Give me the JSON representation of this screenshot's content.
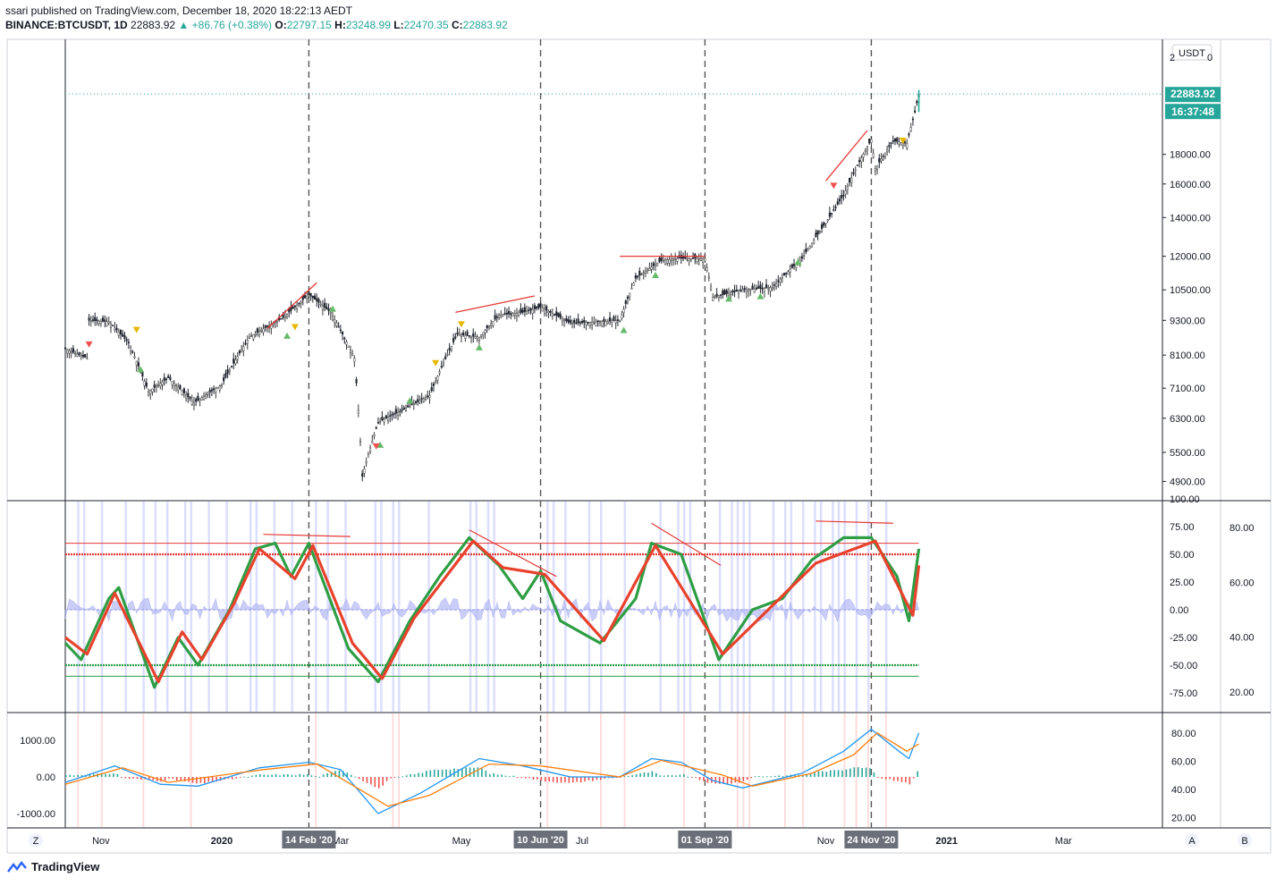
{
  "header": {
    "line1": "ssari published on TradingView.com, December 18, 2020 18:22:13 AEDT",
    "symbol": "BINANCE:BTCUSDT, 1D",
    "last": "22883.92",
    "change": "+86.76 (+0.38%)",
    "o_label": "O:",
    "o": "22797.15",
    "h_label": "H:",
    "h": "23248.99",
    "l_label": "L:",
    "l": "22470.35",
    "c_label": "C:",
    "c": "22883.92"
  },
  "price_axis": {
    "currency": "USDT",
    "ticks": [
      "18000.00",
      "16000.00",
      "14000.00",
      "12000.00",
      "10500.00",
      "9300.00",
      "8100.00",
      "7100.00",
      "6300.00",
      "5500.00",
      "4900.00"
    ],
    "top_tick_fragment": "2",
    "last_price_tag": "22883.92",
    "countdown_tag": "16:37:48"
  },
  "osc_axis_left": [
    "100.00",
    "75.00",
    "50.00",
    "25.00",
    "0.00",
    "-25.00",
    "-50.00",
    "-75.00"
  ],
  "osc_axis_right": [
    "80.00",
    "60.00",
    "40.00",
    "20.00"
  ],
  "macd_axis_left": [
    "1000.00",
    "0.00",
    "-1000.00"
  ],
  "macd_axis_right": [
    "80.00",
    "60.00",
    "40.00",
    "20.00"
  ],
  "time_axis": {
    "labels": [
      "Nov",
      "2020",
      "Mar",
      "May",
      "Jul",
      "Sep",
      "Nov",
      "2021",
      "Mar"
    ],
    "markers": [
      "14 Feb '20",
      "10 Jun '20",
      "01 Sep '20",
      "24 Nov '20"
    ],
    "left_button": "Z",
    "right_buttons": [
      "A",
      "B"
    ]
  },
  "footer": {
    "brand": "TradingView"
  },
  "chart_data": [
    {
      "type": "candlestick",
      "title": "BINANCE:BTCUSDT, 1D",
      "ylabel": "USDT",
      "yscale": "log",
      "ylim": [
        4600,
        24500
      ],
      "xlim": [
        "2019-10-14",
        "2021-04-20"
      ],
      "close_path": [
        [
          "2019-10-14",
          8300
        ],
        [
          "2019-10-25",
          8000
        ],
        [
          "2019-10-26",
          9300
        ],
        [
          "2019-11-05",
          9250
        ],
        [
          "2019-11-15",
          8500
        ],
        [
          "2019-11-25",
          7000
        ],
        [
          "2019-12-05",
          7400
        ],
        [
          "2019-12-18",
          6700
        ],
        [
          "2020-01-01",
          7200
        ],
        [
          "2020-01-15",
          8700
        ],
        [
          "2020-02-01",
          9400
        ],
        [
          "2020-02-14",
          10300
        ],
        [
          "2020-02-25",
          9600
        ],
        [
          "2020-03-08",
          8000
        ],
        [
          "2020-03-12",
          5000
        ],
        [
          "2020-03-20",
          6200
        ],
        [
          "2020-04-01",
          6500
        ],
        [
          "2020-04-15",
          6900
        ],
        [
          "2020-04-29",
          8800
        ],
        [
          "2020-05-10",
          8700
        ],
        [
          "2020-05-20",
          9500
        ],
        [
          "2020-06-01",
          9600
        ],
        [
          "2020-06-10",
          9800
        ],
        [
          "2020-06-25",
          9200
        ],
        [
          "2020-07-10",
          9250
        ],
        [
          "2020-07-20",
          9300
        ],
        [
          "2020-07-28",
          11000
        ],
        [
          "2020-08-10",
          11800
        ],
        [
          "2020-08-18",
          11900
        ],
        [
          "2020-09-01",
          11900
        ],
        [
          "2020-09-05",
          10200
        ],
        [
          "2020-09-20",
          10500
        ],
        [
          "2020-10-05",
          10600
        ],
        [
          "2020-10-20",
          11900
        ],
        [
          "2020-11-01",
          13700
        ],
        [
          "2020-11-10",
          15300
        ],
        [
          "2020-11-24",
          19100
        ],
        [
          "2020-11-26",
          17000
        ],
        [
          "2020-12-05",
          19000
        ],
        [
          "2020-12-12",
          18800
        ],
        [
          "2020-12-16",
          21300
        ],
        [
          "2020-12-18",
          22883.92
        ]
      ],
      "annotations": [
        {
          "type": "trendline",
          "from": [
            "2020-01-24",
            9000
          ],
          "to": [
            "2020-02-18",
            10800
          ]
        },
        {
          "type": "trendline",
          "from": [
            "2020-04-28",
            9600
          ],
          "to": [
            "2020-06-07",
            10250
          ]
        },
        {
          "type": "trendline",
          "from": [
            "2020-07-20",
            12000
          ],
          "to": [
            "2020-09-01",
            12000
          ]
        },
        {
          "type": "trendline",
          "from": [
            "2020-11-01",
            16200
          ],
          "to": [
            "2020-11-22",
            19800
          ]
        }
      ],
      "vertical_markers": [
        "2020-02-14",
        "2020-06-10",
        "2020-09-01",
        "2020-11-24"
      ],
      "signals": {
        "up": [
          [
            "2019-11-21",
            7700
          ],
          [
            "2020-02-03",
            8800
          ],
          [
            "2020-02-26",
            9800
          ],
          [
            "2020-03-21",
            5700
          ],
          [
            "2020-04-05",
            6800
          ],
          [
            "2020-05-10",
            8400
          ],
          [
            "2020-07-22",
            9000
          ],
          [
            "2020-08-07",
            11200
          ],
          [
            "2020-09-13",
            10200
          ],
          [
            "2020-09-29",
            10300
          ],
          [
            "2020-10-18",
            11800
          ]
        ],
        "down": [
          [
            "2019-10-26",
            8400
          ],
          [
            "2019-11-19",
            8900
          ],
          [
            "2020-02-07",
            9000
          ],
          [
            "2020-03-19",
            5600
          ],
          [
            "2020-04-18",
            7800
          ],
          [
            "2020-05-01",
            9100
          ],
          [
            "2020-11-05",
            15800
          ],
          [
            "2020-12-10",
            18900
          ]
        ]
      }
    },
    {
      "type": "line",
      "title": "",
      "ylim": [
        -100,
        100
      ],
      "levels": [
        60,
        50,
        -50,
        -60
      ],
      "series": [
        {
          "color": "#2e9e44",
          "values": [
            [
              "2019-10-14",
              -30
            ],
            [
              "2019-10-22",
              -45
            ],
            [
              "2019-11-05",
              10
            ],
            [
              "2019-11-10",
              20
            ],
            [
              "2019-11-28",
              -70
            ],
            [
              "2019-12-10",
              -25
            ],
            [
              "2019-12-20",
              -50
            ],
            [
              "2020-01-05",
              0
            ],
            [
              "2020-01-18",
              55
            ],
            [
              "2020-01-28",
              60
            ],
            [
              "2020-02-05",
              30
            ],
            [
              "2020-02-14",
              60
            ],
            [
              "2020-03-05",
              -35
            ],
            [
              "2020-03-20",
              -65
            ],
            [
              "2020-04-05",
              -10
            ],
            [
              "2020-04-20",
              30
            ],
            [
              "2020-05-05",
              65
            ],
            [
              "2020-05-20",
              40
            ],
            [
              "2020-06-01",
              10
            ],
            [
              "2020-06-10",
              35
            ],
            [
              "2020-06-20",
              -10
            ],
            [
              "2020-07-10",
              -30
            ],
            [
              "2020-07-28",
              10
            ],
            [
              "2020-08-05",
              60
            ],
            [
              "2020-08-20",
              50
            ],
            [
              "2020-09-08",
              -45
            ],
            [
              "2020-09-25",
              0
            ],
            [
              "2020-10-10",
              10
            ],
            [
              "2020-10-25",
              45
            ],
            [
              "2020-11-10",
              65
            ],
            [
              "2020-11-24",
              65
            ],
            [
              "2020-12-07",
              30
            ],
            [
              "2020-12-13",
              -10
            ],
            [
              "2020-12-18",
              55
            ]
          ]
        },
        {
          "color": "#e8412c",
          "values": [
            [
              "2019-10-14",
              -25
            ],
            [
              "2019-10-25",
              -40
            ],
            [
              "2019-11-08",
              15
            ],
            [
              "2019-11-30",
              -65
            ],
            [
              "2019-12-12",
              -20
            ],
            [
              "2019-12-22",
              -45
            ],
            [
              "2020-01-07",
              5
            ],
            [
              "2020-01-20",
              55
            ],
            [
              "2020-02-07",
              28
            ],
            [
              "2020-02-16",
              58
            ],
            [
              "2020-03-07",
              -30
            ],
            [
              "2020-03-22",
              -62
            ],
            [
              "2020-04-07",
              -8
            ],
            [
              "2020-05-07",
              62
            ],
            [
              "2020-05-22",
              38
            ],
            [
              "2020-06-12",
              32
            ],
            [
              "2020-07-12",
              -28
            ],
            [
              "2020-08-07",
              58
            ],
            [
              "2020-09-10",
              -40
            ],
            [
              "2020-10-27",
              42
            ],
            [
              "2020-11-26",
              62
            ],
            [
              "2020-12-15",
              -5
            ],
            [
              "2020-12-18",
              40
            ]
          ]
        }
      ]
    },
    {
      "type": "line",
      "title": "",
      "ylim": [
        -1200,
        1600
      ],
      "series": [
        {
          "color": "#2196f3",
          "values": [
            [
              "2019-10-14",
              -150
            ],
            [
              "2019-11-08",
              300
            ],
            [
              "2019-12-01",
              -200
            ],
            [
              "2019-12-20",
              -250
            ],
            [
              "2020-01-20",
              250
            ],
            [
              "2020-02-14",
              400
            ],
            [
              "2020-03-01",
              200
            ],
            [
              "2020-03-20",
              -1000
            ],
            [
              "2020-04-10",
              -450
            ],
            [
              "2020-05-10",
              500
            ],
            [
              "2020-06-01",
              300
            ],
            [
              "2020-06-25",
              0
            ],
            [
              "2020-07-20",
              0
            ],
            [
              "2020-08-05",
              500
            ],
            [
              "2020-08-20",
              400
            ],
            [
              "2020-09-05",
              -100
            ],
            [
              "2020-09-20",
              -300
            ],
            [
              "2020-10-20",
              100
            ],
            [
              "2020-11-10",
              700
            ],
            [
              "2020-11-24",
              1300
            ],
            [
              "2020-12-08",
              700
            ],
            [
              "2020-12-13",
              500
            ],
            [
              "2020-12-18",
              1200
            ]
          ]
        },
        {
          "color": "#ff7f0e",
          "values": [
            [
              "2019-10-14",
              -200
            ],
            [
              "2019-11-12",
              250
            ],
            [
              "2019-12-05",
              -150
            ],
            [
              "2020-01-22",
              200
            ],
            [
              "2020-02-18",
              350
            ],
            [
              "2020-03-25",
              -800
            ],
            [
              "2020-04-15",
              -500
            ],
            [
              "2020-05-15",
              350
            ],
            [
              "2020-06-10",
              300
            ],
            [
              "2020-07-20",
              0
            ],
            [
              "2020-08-10",
              450
            ],
            [
              "2020-09-10",
              50
            ],
            [
              "2020-09-25",
              -250
            ],
            [
              "2020-10-25",
              100
            ],
            [
              "2020-11-15",
              600
            ],
            [
              "2020-11-27",
              1200
            ],
            [
              "2020-12-12",
              700
            ],
            [
              "2020-12-18",
              900
            ]
          ]
        }
      ]
    }
  ]
}
